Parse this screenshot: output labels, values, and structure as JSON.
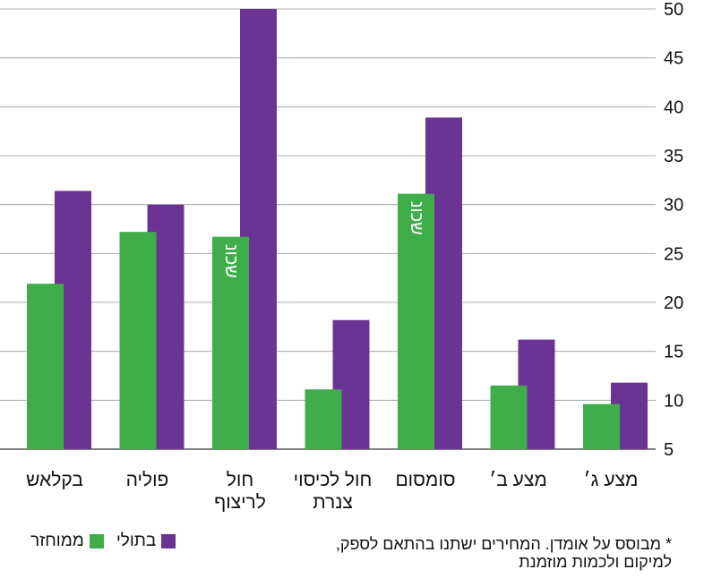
{
  "chart_data": {
    "type": "bar",
    "categories": [
      "בקלאש",
      "פוליה",
      "חול לריצוף",
      "חול לכיסוי צנרת",
      "סומסום",
      "מצע ב׳",
      "מצע ג׳"
    ],
    "category_lines": [
      [
        "בקלאש"
      ],
      [
        "פוליה"
      ],
      [
        "חול",
        "לריצוף"
      ],
      [
        "חול לכיסוי",
        "צנרת"
      ],
      [
        "סומסום"
      ],
      [
        "מצע ב׳"
      ],
      [
        "מצע ג׳"
      ]
    ],
    "series": [
      {
        "name": "ממוחזר",
        "values": [
          21.9,
          27.2,
          26.7,
          11.1,
          31.1,
          11.5,
          9.6
        ]
      },
      {
        "name": "בתולי",
        "values": [
          31.4,
          30.0,
          50.0,
          18.2,
          38.9,
          16.2,
          11.8
        ]
      }
    ],
    "bar_annotations": [
      {
        "category_index": 2,
        "series_index": 0,
        "text": "שכונ"
      },
      {
        "category_index": 4,
        "series_index": 0,
        "text": "שכונ"
      }
    ],
    "yticks": [
      5,
      10,
      15,
      20,
      25,
      30,
      35,
      40,
      45,
      50
    ],
    "ylim": [
      5,
      50
    ],
    "grid": true,
    "y_axis_side": "right",
    "colors": {
      "recycled": "#3fae4a",
      "virgin": "#6b3494",
      "grid": "#999999"
    }
  },
  "legend": {
    "items": [
      {
        "label": "ממוחזר",
        "color": "#3fae4a"
      },
      {
        "label": "בתולי",
        "color": "#6b3494"
      }
    ]
  },
  "footnote": {
    "line1": "* מבוסס על אומדן. המחירים ישתנו בהתאם לספק,",
    "line2": "למיקום ולכמות מוזמנת"
  }
}
